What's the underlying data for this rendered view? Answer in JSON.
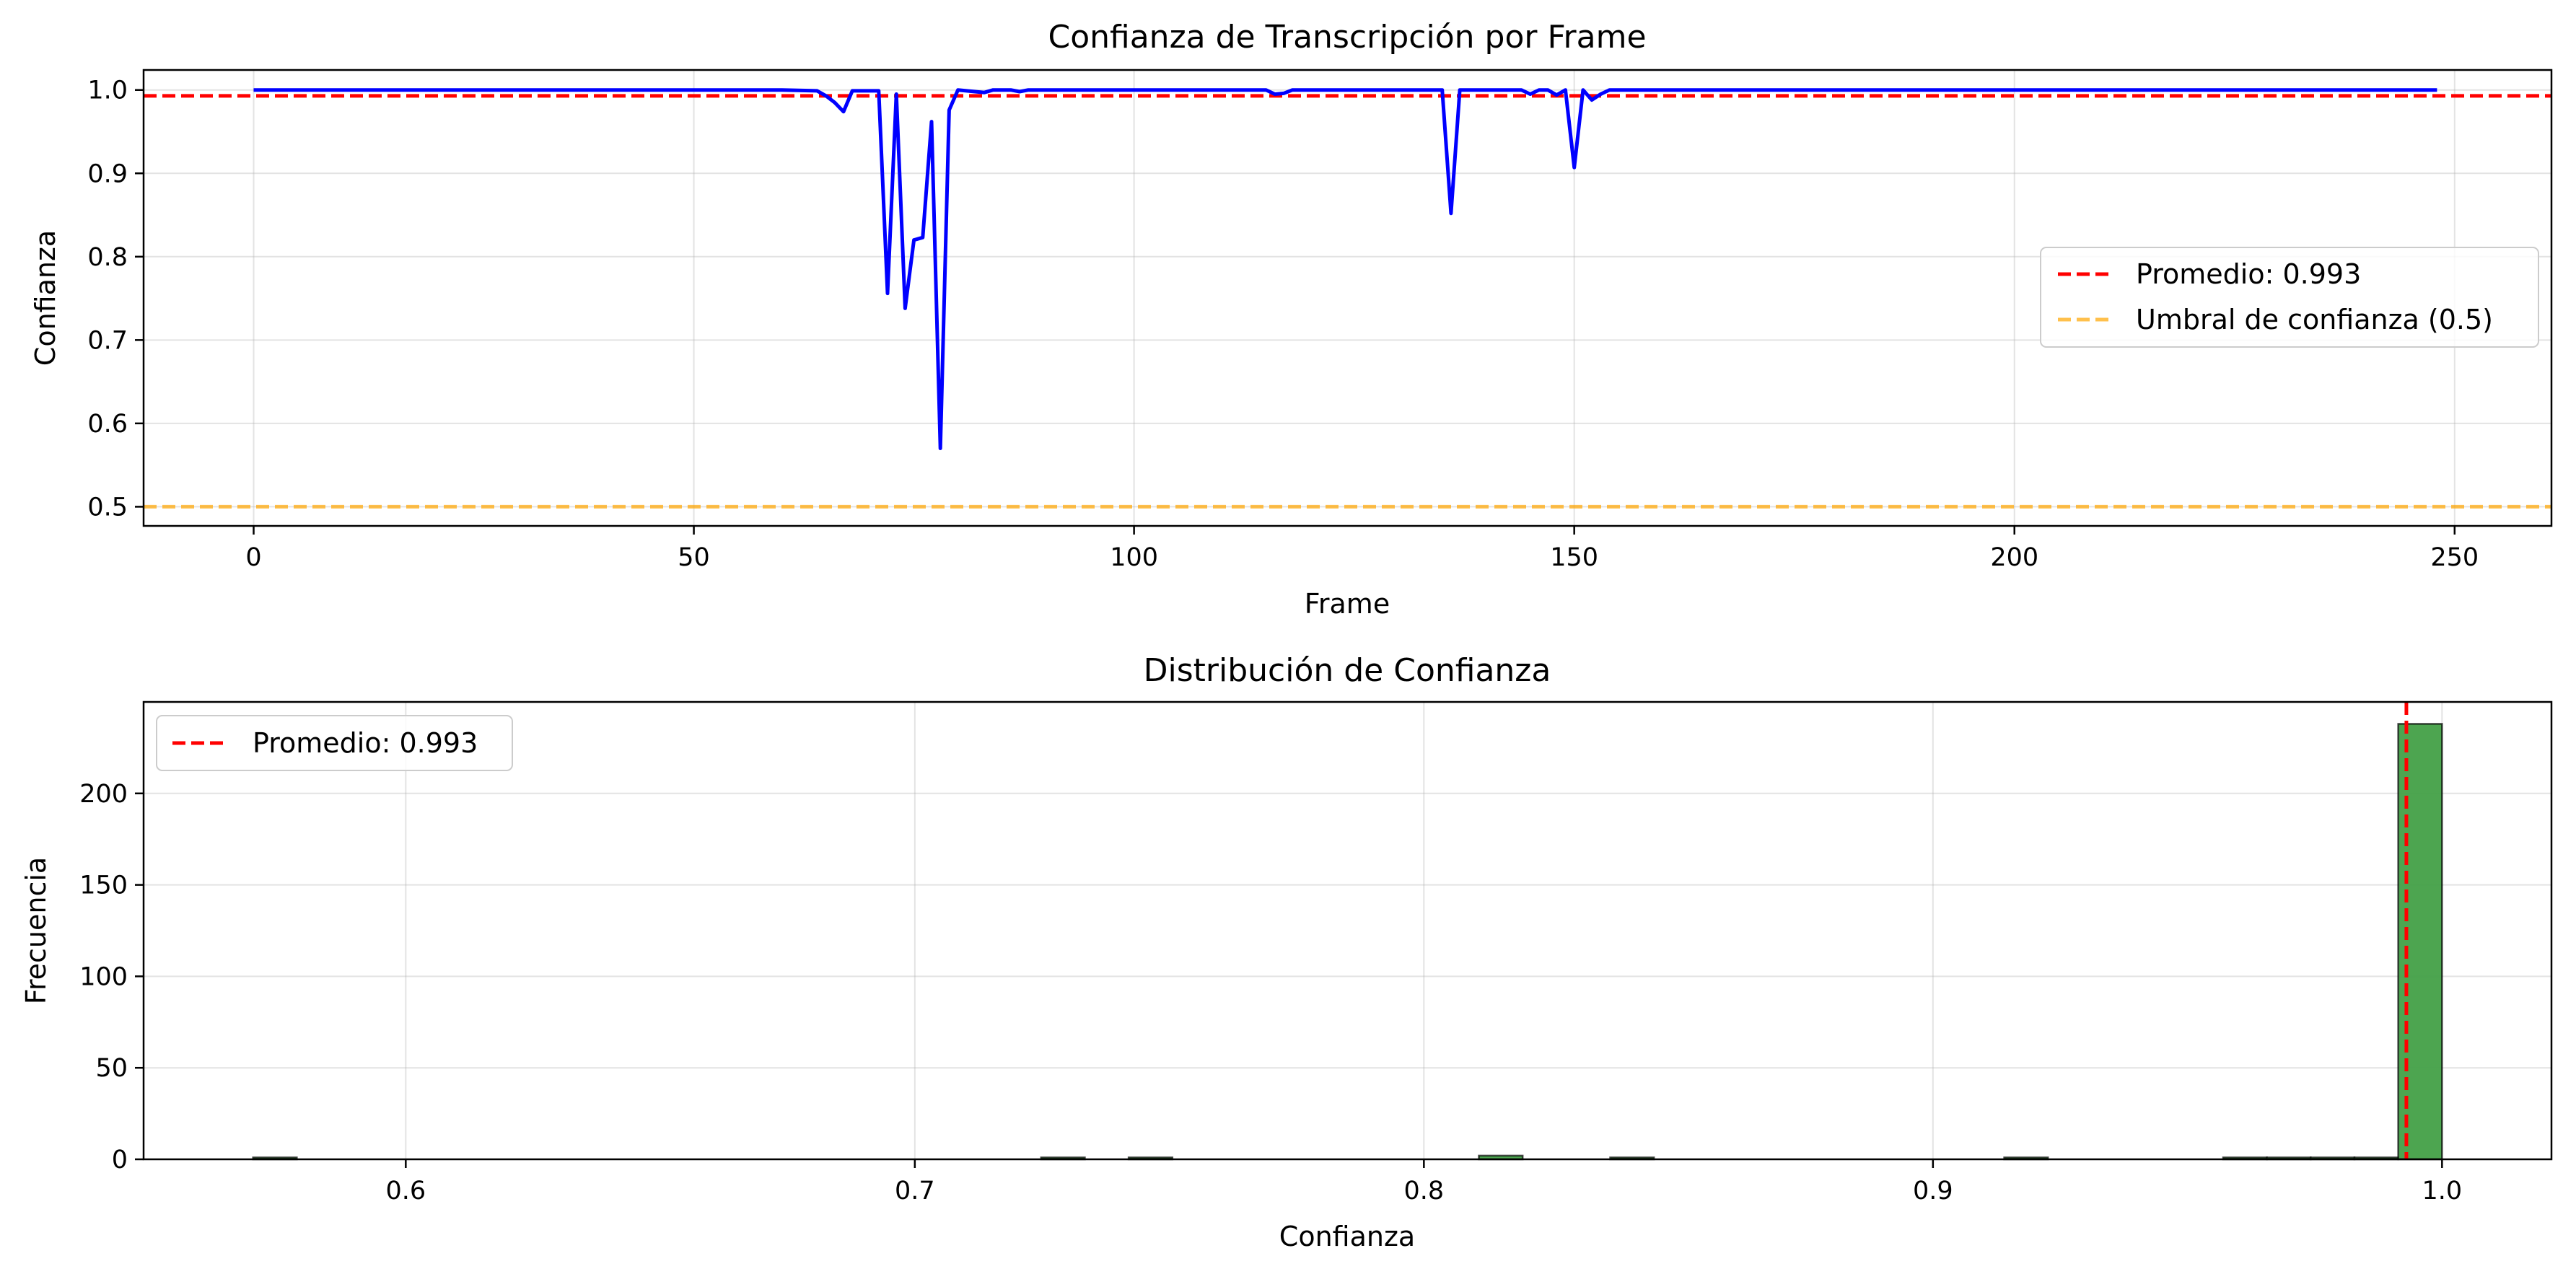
{
  "chart_data": [
    {
      "type": "line",
      "title": "Confianza de Transcripción por Frame",
      "xlabel": "Frame",
      "ylabel": "Confianza",
      "xlim": [
        -12.5,
        261
      ],
      "ylim": [
        0.477,
        1.024
      ],
      "xticks": [
        0,
        50,
        100,
        150,
        200,
        250
      ],
      "yticks": [
        0.5,
        0.6,
        0.7,
        0.8,
        0.9,
        1.0
      ],
      "xtick_labels": [
        "0",
        "50",
        "100",
        "150",
        "200",
        "250"
      ],
      "ytick_labels": [
        "0.5",
        "0.6",
        "0.7",
        "0.8",
        "0.9",
        "1.0"
      ],
      "grid": true,
      "legend_position": "right",
      "series": [
        {
          "color": "#0000ff",
          "points": [
            [
              0,
              1.0
            ],
            [
              60,
              1.0
            ],
            [
              64,
              0.999
            ],
            [
              65,
              0.993
            ],
            [
              66,
              0.985
            ],
            [
              67,
              0.974
            ],
            [
              68,
              0.999
            ],
            [
              71,
              0.999
            ],
            [
              72,
              0.756
            ],
            [
              73,
              0.995
            ],
            [
              74,
              0.738
            ],
            [
              75,
              0.82
            ],
            [
              76,
              0.823
            ],
            [
              77,
              0.962
            ],
            [
              78,
              0.57
            ],
            [
              79,
              0.976
            ],
            [
              80,
              1.0
            ],
            [
              83,
              0.997
            ],
            [
              84,
              1.0
            ],
            [
              86,
              1.0
            ],
            [
              87,
              0.998
            ],
            [
              88,
              1.0
            ],
            [
              115,
              1.0
            ],
            [
              116,
              0.995
            ],
            [
              117,
              0.996
            ],
            [
              118,
              1.0
            ],
            [
              135,
              1.0
            ],
            [
              136,
              0.852
            ],
            [
              137,
              1.0
            ],
            [
              144,
              1.0
            ],
            [
              145,
              0.995
            ],
            [
              146,
              1.0
            ],
            [
              147,
              1.0
            ],
            [
              148,
              0.994
            ],
            [
              149,
              1.0
            ],
            [
              150,
              0.907
            ],
            [
              151,
              1.0
            ],
            [
              152,
              0.988
            ],
            [
              153,
              0.995
            ],
            [
              154,
              1.0
            ],
            [
              248,
              1.0
            ]
          ]
        }
      ],
      "reference_lines": [
        {
          "name": "Promedio: 0.993",
          "value": 0.993,
          "color": "#ff0000"
        },
        {
          "name": "Umbral de confianza (0.5)",
          "value": 0.5,
          "color": "#ffa500"
        }
      ]
    },
    {
      "type": "bar",
      "title": "Distribución de Confianza",
      "xlabel": "Confianza",
      "ylabel": "Frecuencia",
      "xlim": [
        0.5485,
        1.0215
      ],
      "ylim": [
        0,
        250
      ],
      "xticks": [
        0.6,
        0.7,
        0.8,
        0.9,
        1.0
      ],
      "yticks": [
        0,
        50,
        100,
        150,
        200
      ],
      "xtick_labels": [
        "0.6",
        "0.7",
        "0.8",
        "0.9",
        "1.0"
      ],
      "ytick_labels": [
        "0",
        "50",
        "100",
        "150",
        "200"
      ],
      "grid": true,
      "legend_position": "top-left",
      "bar_color": "#43a047",
      "bin_range": [
        0.57,
        1.0
      ],
      "bins": 50,
      "counts": [
        1,
        0,
        0,
        0,
        0,
        0,
        0,
        0,
        0,
        0,
        0,
        0,
        0,
        0,
        0,
        0,
        0,
        0,
        1,
        0,
        1,
        0,
        0,
        0,
        0,
        0,
        0,
        0,
        2,
        0,
        0,
        1,
        0,
        0,
        0,
        0,
        0,
        0,
        0,
        0,
        1,
        0,
        0,
        0,
        0,
        1,
        1,
        1,
        1,
        238
      ],
      "reference_lines": [
        {
          "name": "Promedio: 0.993",
          "value": 0.993,
          "color": "#ff0000"
        }
      ]
    }
  ]
}
